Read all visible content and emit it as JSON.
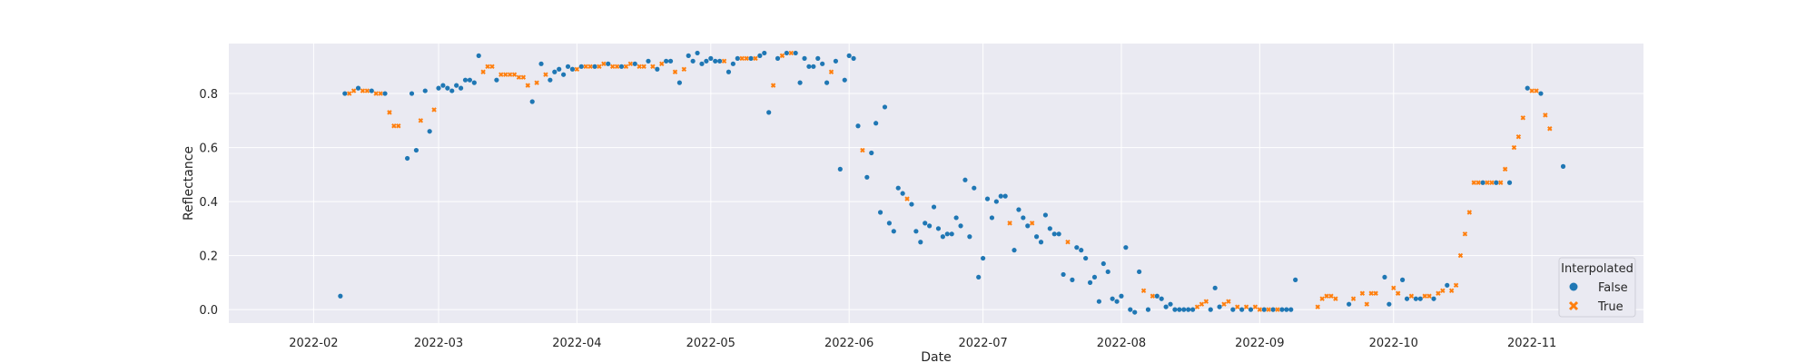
{
  "chart_data": {
    "type": "scatter",
    "title": "",
    "xlabel": "Date",
    "ylabel": "Reflectance",
    "x_type": "date",
    "xlim": [
      "2022-01-13",
      "2022-11-26"
    ],
    "ylim": [
      -0.05,
      0.985
    ],
    "x_ticks": [
      "2022-02-01",
      "2022-03-01",
      "2022-04-01",
      "2022-05-01",
      "2022-06-01",
      "2022-07-01",
      "2022-08-01",
      "2022-09-01",
      "2022-10-01",
      "2022-11-01"
    ],
    "x_tick_labels": [
      "2022-02",
      "2022-03",
      "2022-04",
      "2022-05",
      "2022-06",
      "2022-07",
      "2022-08",
      "2022-09",
      "2022-10",
      "2022-11"
    ],
    "y_ticks": [
      0.0,
      0.2,
      0.4,
      0.6,
      0.8
    ],
    "y_tick_labels": [
      "0.0",
      "0.2",
      "0.4",
      "0.6",
      "0.8"
    ],
    "grid": true,
    "legend": {
      "title": "Interpolated",
      "placement": "lower-right",
      "entries": [
        {
          "label": "False",
          "marker": "circle",
          "color": "#1f77b4"
        },
        {
          "label": "True",
          "marker": "x",
          "color": "#ff7f0e"
        }
      ]
    },
    "colors": {
      "background": "#eaeaf2",
      "grid": "#ffffff",
      "false": "#1f77b4",
      "true": "#ff7f0e"
    },
    "series": [
      {
        "name": "False",
        "points": [
          [
            "2022-02-07",
            0.05
          ],
          [
            "2022-02-08",
            0.8
          ],
          [
            "2022-02-11",
            0.82
          ],
          [
            "2022-02-14",
            0.81
          ],
          [
            "2022-02-17",
            0.8
          ],
          [
            "2022-02-22",
            0.56
          ],
          [
            "2022-02-23",
            0.8
          ],
          [
            "2022-02-24",
            0.59
          ],
          [
            "2022-02-26",
            0.81
          ],
          [
            "2022-02-27",
            0.66
          ],
          [
            "2022-03-01",
            0.82
          ],
          [
            "2022-03-02",
            0.83
          ],
          [
            "2022-03-03",
            0.82
          ],
          [
            "2022-03-04",
            0.81
          ],
          [
            "2022-03-05",
            0.83
          ],
          [
            "2022-03-06",
            0.82
          ],
          [
            "2022-03-07",
            0.85
          ],
          [
            "2022-03-08",
            0.85
          ],
          [
            "2022-03-09",
            0.84
          ],
          [
            "2022-03-10",
            0.94
          ],
          [
            "2022-03-14",
            0.85
          ],
          [
            "2022-03-22",
            0.77
          ],
          [
            "2022-03-24",
            0.91
          ],
          [
            "2022-03-26",
            0.85
          ],
          [
            "2022-03-27",
            0.88
          ],
          [
            "2022-03-28",
            0.89
          ],
          [
            "2022-03-29",
            0.87
          ],
          [
            "2022-03-30",
            0.9
          ],
          [
            "2022-03-31",
            0.89
          ],
          [
            "2022-04-02",
            0.9
          ],
          [
            "2022-04-05",
            0.9
          ],
          [
            "2022-04-08",
            0.91
          ],
          [
            "2022-04-11",
            0.9
          ],
          [
            "2022-04-14",
            0.91
          ],
          [
            "2022-04-17",
            0.92
          ],
          [
            "2022-04-19",
            0.89
          ],
          [
            "2022-04-21",
            0.92
          ],
          [
            "2022-04-22",
            0.92
          ],
          [
            "2022-04-24",
            0.84
          ],
          [
            "2022-04-26",
            0.94
          ],
          [
            "2022-04-27",
            0.92
          ],
          [
            "2022-04-28",
            0.95
          ],
          [
            "2022-04-29",
            0.91
          ],
          [
            "2022-04-30",
            0.92
          ],
          [
            "2022-05-01",
            0.93
          ],
          [
            "2022-05-02",
            0.92
          ],
          [
            "2022-05-03",
            0.92
          ],
          [
            "2022-05-05",
            0.88
          ],
          [
            "2022-05-06",
            0.91
          ],
          [
            "2022-05-07",
            0.93
          ],
          [
            "2022-05-10",
            0.93
          ],
          [
            "2022-05-12",
            0.94
          ],
          [
            "2022-05-13",
            0.95
          ],
          [
            "2022-05-14",
            0.73
          ],
          [
            "2022-05-16",
            0.93
          ],
          [
            "2022-05-18",
            0.95
          ],
          [
            "2022-05-20",
            0.95
          ],
          [
            "2022-05-21",
            0.84
          ],
          [
            "2022-05-22",
            0.93
          ],
          [
            "2022-05-23",
            0.9
          ],
          [
            "2022-05-24",
            0.9
          ],
          [
            "2022-05-25",
            0.93
          ],
          [
            "2022-05-26",
            0.91
          ],
          [
            "2022-05-27",
            0.84
          ],
          [
            "2022-05-29",
            0.92
          ],
          [
            "2022-05-30",
            0.52
          ],
          [
            "2022-05-31",
            0.85
          ],
          [
            "2022-06-01",
            0.94
          ],
          [
            "2022-06-02",
            0.93
          ],
          [
            "2022-06-03",
            0.68
          ],
          [
            "2022-06-05",
            0.49
          ],
          [
            "2022-06-06",
            0.58
          ],
          [
            "2022-06-07",
            0.69
          ],
          [
            "2022-06-08",
            0.36
          ],
          [
            "2022-06-09",
            0.75
          ],
          [
            "2022-06-10",
            0.32
          ],
          [
            "2022-06-11",
            0.29
          ],
          [
            "2022-06-12",
            0.45
          ],
          [
            "2022-06-13",
            0.43
          ],
          [
            "2022-06-15",
            0.39
          ],
          [
            "2022-06-16",
            0.29
          ],
          [
            "2022-06-17",
            0.25
          ],
          [
            "2022-06-18",
            0.32
          ],
          [
            "2022-06-19",
            0.31
          ],
          [
            "2022-06-20",
            0.38
          ],
          [
            "2022-06-21",
            0.3
          ],
          [
            "2022-06-22",
            0.27
          ],
          [
            "2022-06-23",
            0.28
          ],
          [
            "2022-06-24",
            0.28
          ],
          [
            "2022-06-25",
            0.34
          ],
          [
            "2022-06-26",
            0.31
          ],
          [
            "2022-06-27",
            0.48
          ],
          [
            "2022-06-28",
            0.27
          ],
          [
            "2022-06-29",
            0.45
          ],
          [
            "2022-06-30",
            0.12
          ],
          [
            "2022-07-01",
            0.19
          ],
          [
            "2022-07-02",
            0.41
          ],
          [
            "2022-07-03",
            0.34
          ],
          [
            "2022-07-04",
            0.4
          ],
          [
            "2022-07-05",
            0.42
          ],
          [
            "2022-07-06",
            0.42
          ],
          [
            "2022-07-08",
            0.22
          ],
          [
            "2022-07-09",
            0.37
          ],
          [
            "2022-07-10",
            0.34
          ],
          [
            "2022-07-11",
            0.31
          ],
          [
            "2022-07-13",
            0.27
          ],
          [
            "2022-07-14",
            0.25
          ],
          [
            "2022-07-15",
            0.35
          ],
          [
            "2022-07-16",
            0.3
          ],
          [
            "2022-07-17",
            0.28
          ],
          [
            "2022-07-18",
            0.28
          ],
          [
            "2022-07-19",
            0.13
          ],
          [
            "2022-07-21",
            0.11
          ],
          [
            "2022-07-22",
            0.23
          ],
          [
            "2022-07-23",
            0.22
          ],
          [
            "2022-07-24",
            0.19
          ],
          [
            "2022-07-25",
            0.1
          ],
          [
            "2022-07-26",
            0.12
          ],
          [
            "2022-07-27",
            0.03
          ],
          [
            "2022-07-28",
            0.17
          ],
          [
            "2022-07-29",
            0.14
          ],
          [
            "2022-07-30",
            0.04
          ],
          [
            "2022-07-31",
            0.03
          ],
          [
            "2022-08-01",
            0.05
          ],
          [
            "2022-08-02",
            0.23
          ],
          [
            "2022-08-03",
            0.0
          ],
          [
            "2022-08-04",
            -0.01
          ],
          [
            "2022-08-05",
            0.14
          ],
          [
            "2022-08-07",
            0.0
          ],
          [
            "2022-08-09",
            0.05
          ],
          [
            "2022-08-10",
            0.04
          ],
          [
            "2022-08-11",
            0.01
          ],
          [
            "2022-08-12",
            0.02
          ],
          [
            "2022-08-13",
            0.0
          ],
          [
            "2022-08-14",
            0.0
          ],
          [
            "2022-08-15",
            0.0
          ],
          [
            "2022-08-16",
            0.0
          ],
          [
            "2022-08-17",
            0.0
          ],
          [
            "2022-08-21",
            0.0
          ],
          [
            "2022-08-22",
            0.08
          ],
          [
            "2022-08-23",
            0.01
          ],
          [
            "2022-08-26",
            0.0
          ],
          [
            "2022-08-28",
            0.0
          ],
          [
            "2022-08-30",
            0.0
          ],
          [
            "2022-09-02",
            0.0
          ],
          [
            "2022-09-04",
            0.0
          ],
          [
            "2022-09-06",
            0.0
          ],
          [
            "2022-09-07",
            0.0
          ],
          [
            "2022-09-08",
            0.0
          ],
          [
            "2022-09-09",
            0.11
          ],
          [
            "2022-09-21",
            0.02
          ],
          [
            "2022-09-29",
            0.12
          ],
          [
            "2022-09-30",
            0.02
          ],
          [
            "2022-10-03",
            0.11
          ],
          [
            "2022-10-04",
            0.04
          ],
          [
            "2022-10-06",
            0.04
          ],
          [
            "2022-10-07",
            0.04
          ],
          [
            "2022-10-10",
            0.04
          ],
          [
            "2022-10-13",
            0.09
          ],
          [
            "2022-10-21",
            0.47
          ],
          [
            "2022-10-24",
            0.47
          ],
          [
            "2022-10-27",
            0.47
          ],
          [
            "2022-10-31",
            0.82
          ],
          [
            "2022-11-03",
            0.8
          ],
          [
            "2022-11-08",
            0.53
          ]
        ]
      },
      {
        "name": "True",
        "points": [
          [
            "2022-02-09",
            0.8
          ],
          [
            "2022-02-10",
            0.81
          ],
          [
            "2022-02-12",
            0.81
          ],
          [
            "2022-02-13",
            0.81
          ],
          [
            "2022-02-15",
            0.8
          ],
          [
            "2022-02-16",
            0.8
          ],
          [
            "2022-02-18",
            0.73
          ],
          [
            "2022-02-19",
            0.68
          ],
          [
            "2022-02-20",
            0.68
          ],
          [
            "2022-02-25",
            0.7
          ],
          [
            "2022-02-28",
            0.74
          ],
          [
            "2022-03-11",
            0.88
          ],
          [
            "2022-03-12",
            0.9
          ],
          [
            "2022-03-13",
            0.9
          ],
          [
            "2022-03-15",
            0.87
          ],
          [
            "2022-03-16",
            0.87
          ],
          [
            "2022-03-17",
            0.87
          ],
          [
            "2022-03-18",
            0.87
          ],
          [
            "2022-03-19",
            0.86
          ],
          [
            "2022-03-20",
            0.86
          ],
          [
            "2022-03-21",
            0.83
          ],
          [
            "2022-03-23",
            0.84
          ],
          [
            "2022-03-25",
            0.87
          ],
          [
            "2022-04-01",
            0.89
          ],
          [
            "2022-04-03",
            0.9
          ],
          [
            "2022-04-04",
            0.9
          ],
          [
            "2022-04-06",
            0.9
          ],
          [
            "2022-04-07",
            0.91
          ],
          [
            "2022-04-09",
            0.9
          ],
          [
            "2022-04-10",
            0.9
          ],
          [
            "2022-04-12",
            0.9
          ],
          [
            "2022-04-13",
            0.91
          ],
          [
            "2022-04-15",
            0.9
          ],
          [
            "2022-04-16",
            0.9
          ],
          [
            "2022-04-18",
            0.9
          ],
          [
            "2022-04-20",
            0.91
          ],
          [
            "2022-04-23",
            0.88
          ],
          [
            "2022-04-25",
            0.89
          ],
          [
            "2022-05-04",
            0.92
          ],
          [
            "2022-05-08",
            0.93
          ],
          [
            "2022-05-09",
            0.93
          ],
          [
            "2022-05-11",
            0.93
          ],
          [
            "2022-05-15",
            0.83
          ],
          [
            "2022-05-17",
            0.94
          ],
          [
            "2022-05-19",
            0.95
          ],
          [
            "2022-05-28",
            0.88
          ],
          [
            "2022-06-04",
            0.59
          ],
          [
            "2022-06-14",
            0.41
          ],
          [
            "2022-07-07",
            0.32
          ],
          [
            "2022-07-12",
            0.32
          ],
          [
            "2022-07-20",
            0.25
          ],
          [
            "2022-08-06",
            0.07
          ],
          [
            "2022-08-08",
            0.05
          ],
          [
            "2022-08-18",
            0.01
          ],
          [
            "2022-08-19",
            0.02
          ],
          [
            "2022-08-20",
            0.03
          ],
          [
            "2022-08-24",
            0.02
          ],
          [
            "2022-08-25",
            0.03
          ],
          [
            "2022-08-27",
            0.01
          ],
          [
            "2022-08-29",
            0.01
          ],
          [
            "2022-08-31",
            0.01
          ],
          [
            "2022-09-01",
            0.0
          ],
          [
            "2022-09-03",
            0.0
          ],
          [
            "2022-09-05",
            0.0
          ],
          [
            "2022-09-14",
            0.01
          ],
          [
            "2022-09-15",
            0.04
          ],
          [
            "2022-09-16",
            0.05
          ],
          [
            "2022-09-17",
            0.05
          ],
          [
            "2022-09-18",
            0.04
          ],
          [
            "2022-09-22",
            0.04
          ],
          [
            "2022-09-24",
            0.06
          ],
          [
            "2022-09-25",
            0.02
          ],
          [
            "2022-09-26",
            0.06
          ],
          [
            "2022-09-27",
            0.06
          ],
          [
            "2022-10-01",
            0.08
          ],
          [
            "2022-10-02",
            0.06
          ],
          [
            "2022-10-05",
            0.05
          ],
          [
            "2022-10-08",
            0.05
          ],
          [
            "2022-10-09",
            0.05
          ],
          [
            "2022-10-11",
            0.06
          ],
          [
            "2022-10-12",
            0.07
          ],
          [
            "2022-10-14",
            0.07
          ],
          [
            "2022-10-15",
            0.09
          ],
          [
            "2022-10-16",
            0.2
          ],
          [
            "2022-10-17",
            0.28
          ],
          [
            "2022-10-18",
            0.36
          ],
          [
            "2022-10-19",
            0.47
          ],
          [
            "2022-10-20",
            0.47
          ],
          [
            "2022-10-22",
            0.47
          ],
          [
            "2022-10-23",
            0.47
          ],
          [
            "2022-10-25",
            0.47
          ],
          [
            "2022-10-26",
            0.52
          ],
          [
            "2022-10-28",
            0.6
          ],
          [
            "2022-10-29",
            0.64
          ],
          [
            "2022-10-30",
            0.71
          ],
          [
            "2022-11-01",
            0.81
          ],
          [
            "2022-11-02",
            0.81
          ],
          [
            "2022-11-04",
            0.72
          ],
          [
            "2022-11-05",
            0.67
          ]
        ]
      }
    ]
  }
}
